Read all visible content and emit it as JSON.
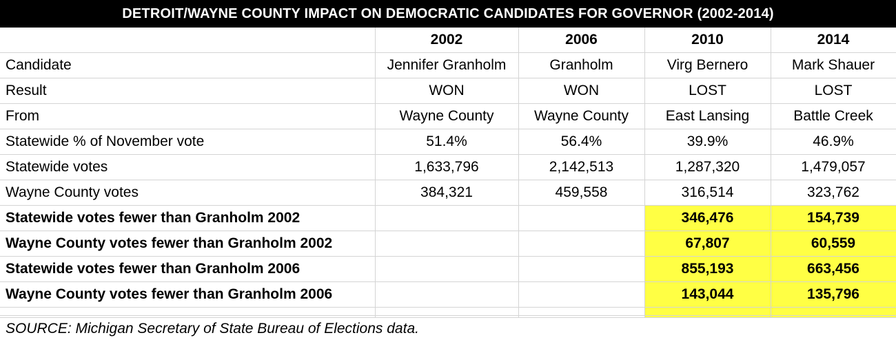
{
  "title": "DETROIT/WAYNE COUNTY IMPACT ON DEMOCRATIC CANDIDATES FOR GOVERNOR (2002-2014)",
  "years": [
    "2002",
    "2006",
    "2010",
    "2014"
  ],
  "rows": [
    {
      "label": "Candidate",
      "values": [
        "Jennifer Granholm",
        "Granholm",
        "Virg Bernero",
        "Mark Shauer"
      ]
    },
    {
      "label": "Result",
      "values": [
        "WON",
        "WON",
        "LOST",
        "LOST"
      ]
    },
    {
      "label": "From",
      "values": [
        "Wayne County",
        "Wayne County",
        "East Lansing",
        "Battle Creek"
      ]
    },
    {
      "label": "Statewide % of November vote",
      "values": [
        "51.4%",
        "56.4%",
        "39.9%",
        "46.9%"
      ]
    },
    {
      "label": "Statewide votes",
      "values": [
        "1,633,796",
        "2,142,513",
        "1,287,320",
        "1,479,057"
      ]
    },
    {
      "label": "Wayne County votes",
      "values": [
        "384,321",
        "459,558",
        "316,514",
        "323,762"
      ]
    },
    {
      "label": "Statewide votes fewer than Granholm 2002",
      "values": [
        "",
        "",
        "346,476",
        "154,739"
      ]
    },
    {
      "label": "Wayne County votes fewer than Granholm 2002",
      "values": [
        "",
        "",
        "67,807",
        "60,559"
      ]
    },
    {
      "label": "Statewide votes fewer than Granholm 2006",
      "values": [
        "",
        "",
        "855,193",
        "663,456"
      ]
    },
    {
      "label": "Wayne County votes fewer than Granholm 2006",
      "values": [
        "",
        "",
        "143,044",
        "135,796"
      ]
    }
  ],
  "highlight_color": "#ffff44",
  "source": "SOURCE: Michigan Secretary of State Bureau of Elections data."
}
